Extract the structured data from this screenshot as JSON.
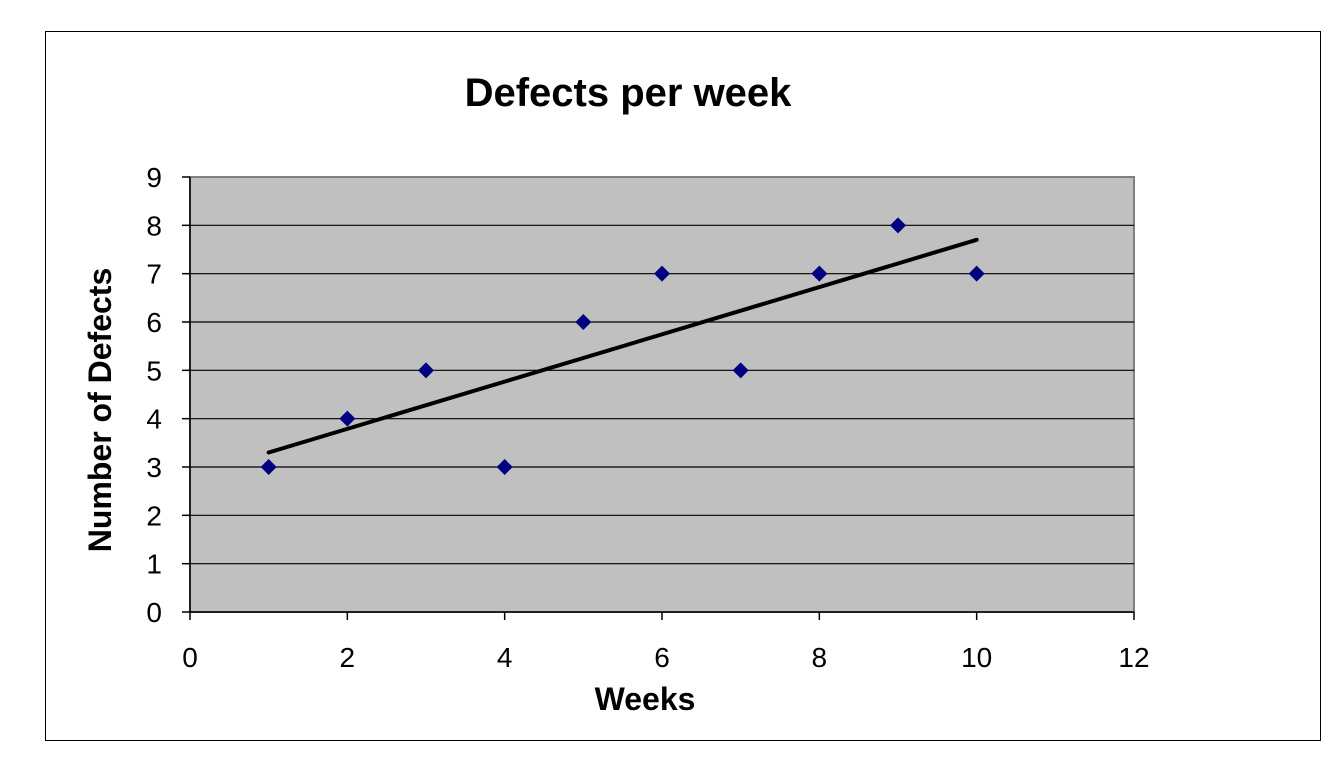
{
  "chart_data": {
    "type": "scatter",
    "title": "Defects per week",
    "xlabel": "Weeks",
    "ylabel": "Number of Defects",
    "xlim": [
      0,
      12
    ],
    "ylim": [
      0,
      9
    ],
    "xticks": [
      "0",
      "2",
      "4",
      "6",
      "8",
      "10",
      "12"
    ],
    "yticks": [
      "0",
      "1",
      "2",
      "3",
      "4",
      "5",
      "6",
      "7",
      "8",
      "9"
    ],
    "grid": true,
    "plot_background": "#c0c0c0",
    "marker_color": "#000080",
    "marker": "diamond",
    "series": [
      {
        "x": [
          1,
          2,
          3,
          4,
          5,
          6,
          7,
          8,
          9,
          10
        ],
        "y": [
          3,
          4,
          5,
          3,
          6,
          7,
          5,
          7,
          8,
          7
        ]
      }
    ],
    "trendline": {
      "type": "linear",
      "x": [
        1,
        10
      ],
      "y": [
        3.3,
        7.7
      ],
      "color": "#000000"
    }
  }
}
